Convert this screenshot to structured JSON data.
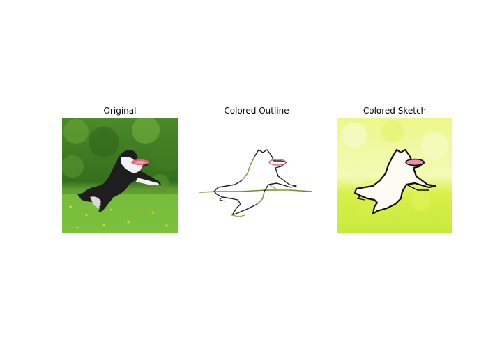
{
  "panels": [
    {
      "title": "Original",
      "image": "dog-catching-frisbee-photo"
    },
    {
      "title": "Colored Outline",
      "image": "dog-catching-frisbee-outline"
    },
    {
      "title": "Colored Sketch",
      "image": "dog-catching-frisbee-sketch"
    }
  ],
  "colors": {
    "background": "#ffffff",
    "grass": "#7bbf3a",
    "foliage": "#3f7a1f",
    "frisbee": "#e8647c",
    "sketch_background": "#dff54a"
  }
}
